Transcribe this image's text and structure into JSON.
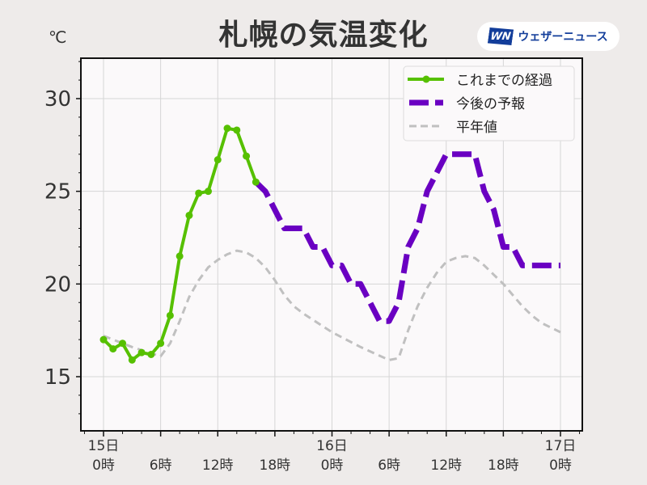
{
  "header": {
    "title": "札幌の気温変化",
    "unit": "℃",
    "brand": {
      "logo_text": "WN",
      "name": "ウェザーニュース",
      "color": "#123d9a"
    }
  },
  "chart_data": {
    "type": "line",
    "title": "札幌の気温変化",
    "xlabel": "",
    "ylabel": "℃",
    "ylim": [
      12,
      32
    ],
    "yticks": [
      15,
      20,
      25,
      30
    ],
    "xlim_hours": [
      -2.4,
      50.2
    ],
    "x_ticks": [
      {
        "hour": 0,
        "day": "15日",
        "time": "0時"
      },
      {
        "hour": 6,
        "day": "",
        "time": "6時"
      },
      {
        "hour": 12,
        "day": "",
        "time": "12時"
      },
      {
        "hour": 18,
        "day": "",
        "time": "18時"
      },
      {
        "hour": 24,
        "day": "16日",
        "time": "0時"
      },
      {
        "hour": 30,
        "day": "",
        "time": "6時"
      },
      {
        "hour": 36,
        "day": "",
        "time": "12時"
      },
      {
        "hour": 42,
        "day": "",
        "time": "18時"
      },
      {
        "hour": 48,
        "day": "17日",
        "time": "0時"
      }
    ],
    "grid": true,
    "legend_position": "upper right",
    "series": [
      {
        "name": "これまでの経過",
        "style": "solid-markers",
        "color": "#56c000",
        "x": [
          0,
          1,
          2,
          3,
          4,
          5,
          6,
          7,
          8,
          9,
          10,
          11,
          12,
          13,
          14,
          15,
          16
        ],
        "values": [
          17.0,
          16.5,
          16.8,
          15.9,
          16.3,
          16.2,
          16.8,
          18.3,
          21.5,
          23.7,
          24.9,
          25.0,
          26.7,
          28.4,
          28.3,
          26.9,
          25.5
        ]
      },
      {
        "name": "今後の予報",
        "style": "dashed-thick",
        "color": "#6a00c2",
        "x": [
          16,
          17,
          18,
          19,
          20,
          21,
          22,
          23,
          24,
          25,
          26,
          27,
          28,
          29,
          30,
          31,
          32,
          33,
          34,
          35,
          36,
          37,
          38,
          39,
          40,
          41,
          42,
          43,
          44,
          45,
          46,
          47,
          48
        ],
        "values": [
          25.5,
          25.0,
          24.0,
          23.0,
          23.0,
          23.0,
          22.0,
          22.0,
          21.0,
          21.0,
          20.0,
          20.0,
          19.0,
          18.0,
          18.0,
          19.0,
          22.0,
          23.0,
          25.0,
          26.0,
          27.0,
          27.0,
          27.0,
          27.0,
          25.0,
          24.0,
          22.0,
          22.0,
          21.0,
          21.0,
          21.0,
          21.0,
          21.0
        ]
      },
      {
        "name": "平年値",
        "style": "dashed-thin",
        "color": "#c0c0c0",
        "x": [
          0,
          3,
          6,
          7,
          8,
          9,
          10,
          11,
          12,
          13,
          14,
          15,
          16,
          17,
          18,
          19,
          20,
          21,
          24,
          27,
          30,
          31,
          32,
          33,
          34,
          35,
          36,
          37,
          38,
          39,
          40,
          41,
          42,
          43,
          44,
          45,
          46,
          48
        ],
        "values": [
          17.2,
          16.6,
          16.1,
          16.8,
          18.0,
          19.3,
          20.2,
          20.9,
          21.3,
          21.6,
          21.8,
          21.7,
          21.4,
          20.9,
          20.2,
          19.4,
          18.8,
          18.4,
          17.4,
          16.6,
          15.9,
          16.0,
          17.5,
          18.8,
          19.8,
          20.6,
          21.2,
          21.4,
          21.5,
          21.4,
          21.0,
          20.5,
          20.0,
          19.4,
          18.8,
          18.3,
          17.9,
          17.4
        ]
      }
    ]
  },
  "legend": {
    "items": [
      {
        "label": "これまでの経過"
      },
      {
        "label": "今後の予報"
      },
      {
        "label": "平年値"
      }
    ]
  }
}
